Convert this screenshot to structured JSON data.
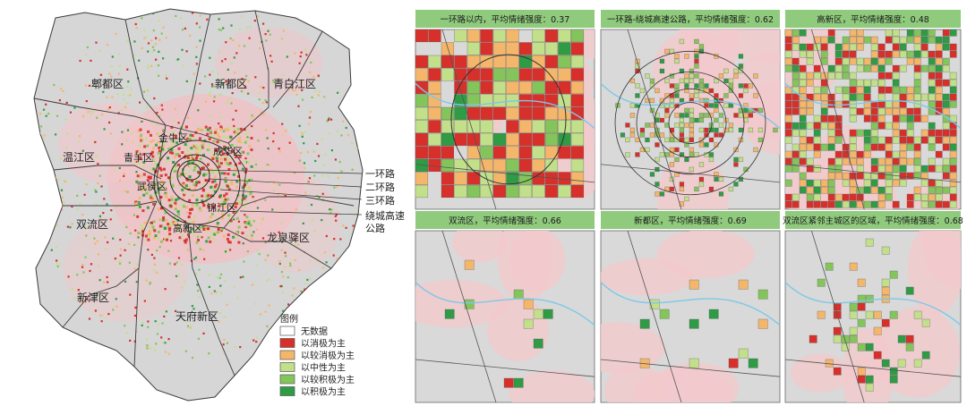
{
  "main_map": {
    "districts": [
      "郫都区",
      "新都区",
      "青白江区",
      "金牛区",
      "成华区",
      "温江区",
      "青羊区",
      "武侯区",
      "锦江区",
      "双流区",
      "高新区",
      "龙泉驿区",
      "新津区",
      "天府新区"
    ],
    "ring_labels": [
      "一环路",
      "二环路",
      "三环路",
      "绕城高速",
      "公路"
    ]
  },
  "legend": {
    "title": "图例",
    "items": [
      {
        "label": "无数据",
        "color": "#ffffff"
      },
      {
        "label": "以消极为主",
        "color": "#d7302b"
      },
      {
        "label": "以较消极为主",
        "color": "#f4b66a"
      },
      {
        "label": "以中性为主",
        "color": "#c2df8a"
      },
      {
        "label": "以较积极为主",
        "color": "#84c55b"
      },
      {
        "label": "以积极为主",
        "color": "#2f9b45"
      }
    ]
  },
  "panels": [
    {
      "title": "一环路以内，平均情绪强度：0.37",
      "mean": 0.37
    },
    {
      "title": "一环路-绕城高速公路，平均情绪强度：0.62",
      "mean": 0.62
    },
    {
      "title": "高新区，平均情绪强度：0.48",
      "mean": 0.48
    },
    {
      "title": "双流区，平均情绪强度：0.66",
      "mean": 0.66
    },
    {
      "title": "新都区，平均情绪强度：0.69",
      "mean": 0.69
    },
    {
      "title": "双流区紧邻主城区的区域，平均情绪强度：0.68",
      "mean": 0.68
    }
  ],
  "colors": {
    "panel_header": "#8fca7d",
    "map_bg": "#d9d9d9",
    "urban_pink": "#f3c9cc",
    "boundary": "#333333",
    "water": "#7cc8e8"
  }
}
